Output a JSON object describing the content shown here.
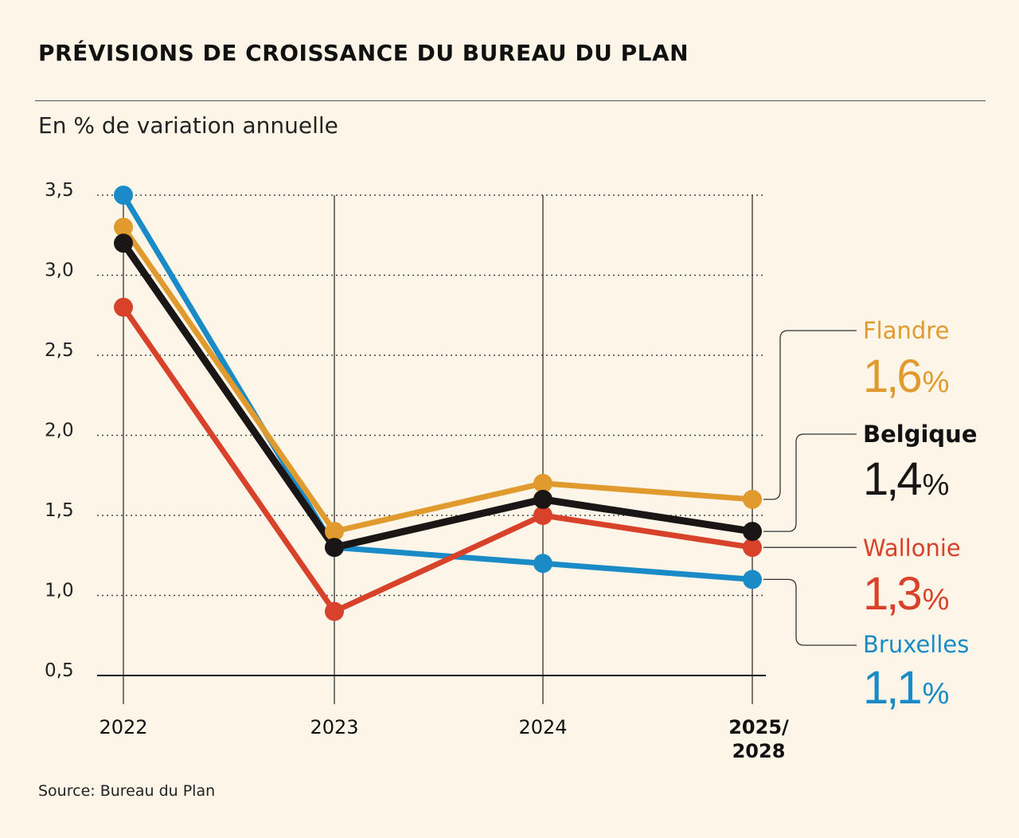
{
  "header": {
    "title": "PRÉVISIONS DE CROISSANCE DU BUREAU DU PLAN",
    "subtitle": "En % de variation annuelle"
  },
  "footer": {
    "source": "Source: Bureau du Plan"
  },
  "chart_data": {
    "type": "line",
    "title": "PRÉVISIONS DE CROISSANCE DU BUREAU DU PLAN",
    "ylabel": "En % de variation annuelle",
    "xlabel": "",
    "ylim": [
      0.5,
      3.5
    ],
    "yticks": [
      3.5,
      3.0,
      2.5,
      2.0,
      1.5,
      1.0,
      0.5
    ],
    "ytick_labels": [
      "3,5",
      "3,0",
      "2,5",
      "2,0",
      "1,5",
      "1,0",
      "0,5"
    ],
    "categories": [
      "2022",
      "2023",
      "2024",
      "2025/2028"
    ],
    "category_labels": [
      [
        "2022"
      ],
      [
        "2023"
      ],
      [
        "2024"
      ],
      [
        "2025/",
        "2028"
      ]
    ],
    "grid": "horizontal dotted",
    "series": [
      {
        "name": "Bruxelles",
        "color": "#1a8bc6",
        "values": [
          3.5,
          1.3,
          1.2,
          1.1
        ],
        "label_value": "1,1",
        "bold_name": false
      },
      {
        "name": "Wallonie",
        "color": "#d8412a",
        "values": [
          2.8,
          0.9,
          1.5,
          1.3
        ],
        "label_value": "1,3",
        "bold_name": false
      },
      {
        "name": "Flandre",
        "color": "#e09a2e",
        "values": [
          3.3,
          1.4,
          1.7,
          1.6
        ],
        "label_value": "1,6",
        "bold_name": false
      },
      {
        "name": "Belgique",
        "color": "#1b1616",
        "values": [
          3.2,
          1.3,
          1.6,
          1.4
        ],
        "label_value": "1,4",
        "bold_name": true
      }
    ]
  }
}
